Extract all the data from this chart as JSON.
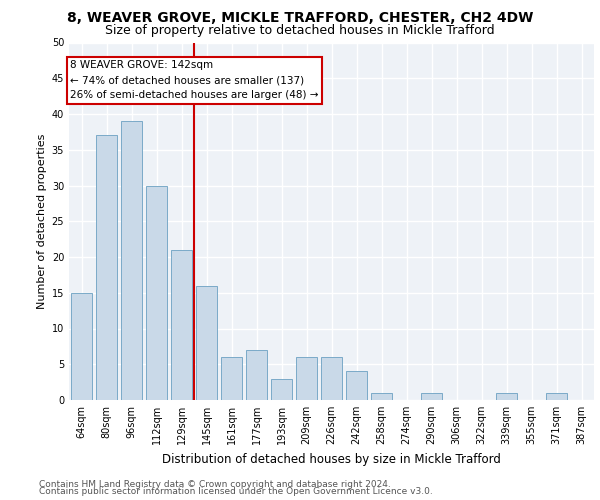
{
  "title1": "8, WEAVER GROVE, MICKLE TRAFFORD, CHESTER, CH2 4DW",
  "title2": "Size of property relative to detached houses in Mickle Trafford",
  "xlabel": "Distribution of detached houses by size in Mickle Trafford",
  "ylabel": "Number of detached properties",
  "categories": [
    "64sqm",
    "80sqm",
    "96sqm",
    "112sqm",
    "129sqm",
    "145sqm",
    "161sqm",
    "177sqm",
    "193sqm",
    "209sqm",
    "226sqm",
    "242sqm",
    "258sqm",
    "274sqm",
    "290sqm",
    "306sqm",
    "322sqm",
    "339sqm",
    "355sqm",
    "371sqm",
    "387sqm"
  ],
  "values": [
    15,
    37,
    39,
    30,
    21,
    16,
    6,
    7,
    3,
    6,
    6,
    4,
    1,
    0,
    1,
    0,
    0,
    1,
    0,
    1,
    0
  ],
  "bar_color": "#c9d9e8",
  "bar_edge_color": "#7aaac8",
  "vline_color": "#cc0000",
  "annotation_text": "8 WEAVER GROVE: 142sqm\n← 74% of detached houses are smaller (137)\n26% of semi-detached houses are larger (48) →",
  "annotation_box_color": "#cc0000",
  "ylim": [
    0,
    50
  ],
  "yticks": [
    0,
    5,
    10,
    15,
    20,
    25,
    30,
    35,
    40,
    45,
    50
  ],
  "footer1": "Contains HM Land Registry data © Crown copyright and database right 2024.",
  "footer2": "Contains public sector information licensed under the Open Government Licence v3.0.",
  "background_color": "#eef2f7",
  "grid_color": "#ffffff",
  "title1_fontsize": 10,
  "title2_fontsize": 9,
  "xlabel_fontsize": 8.5,
  "ylabel_fontsize": 8,
  "tick_fontsize": 7,
  "annotation_fontsize": 7.5,
  "footer_fontsize": 6.5
}
